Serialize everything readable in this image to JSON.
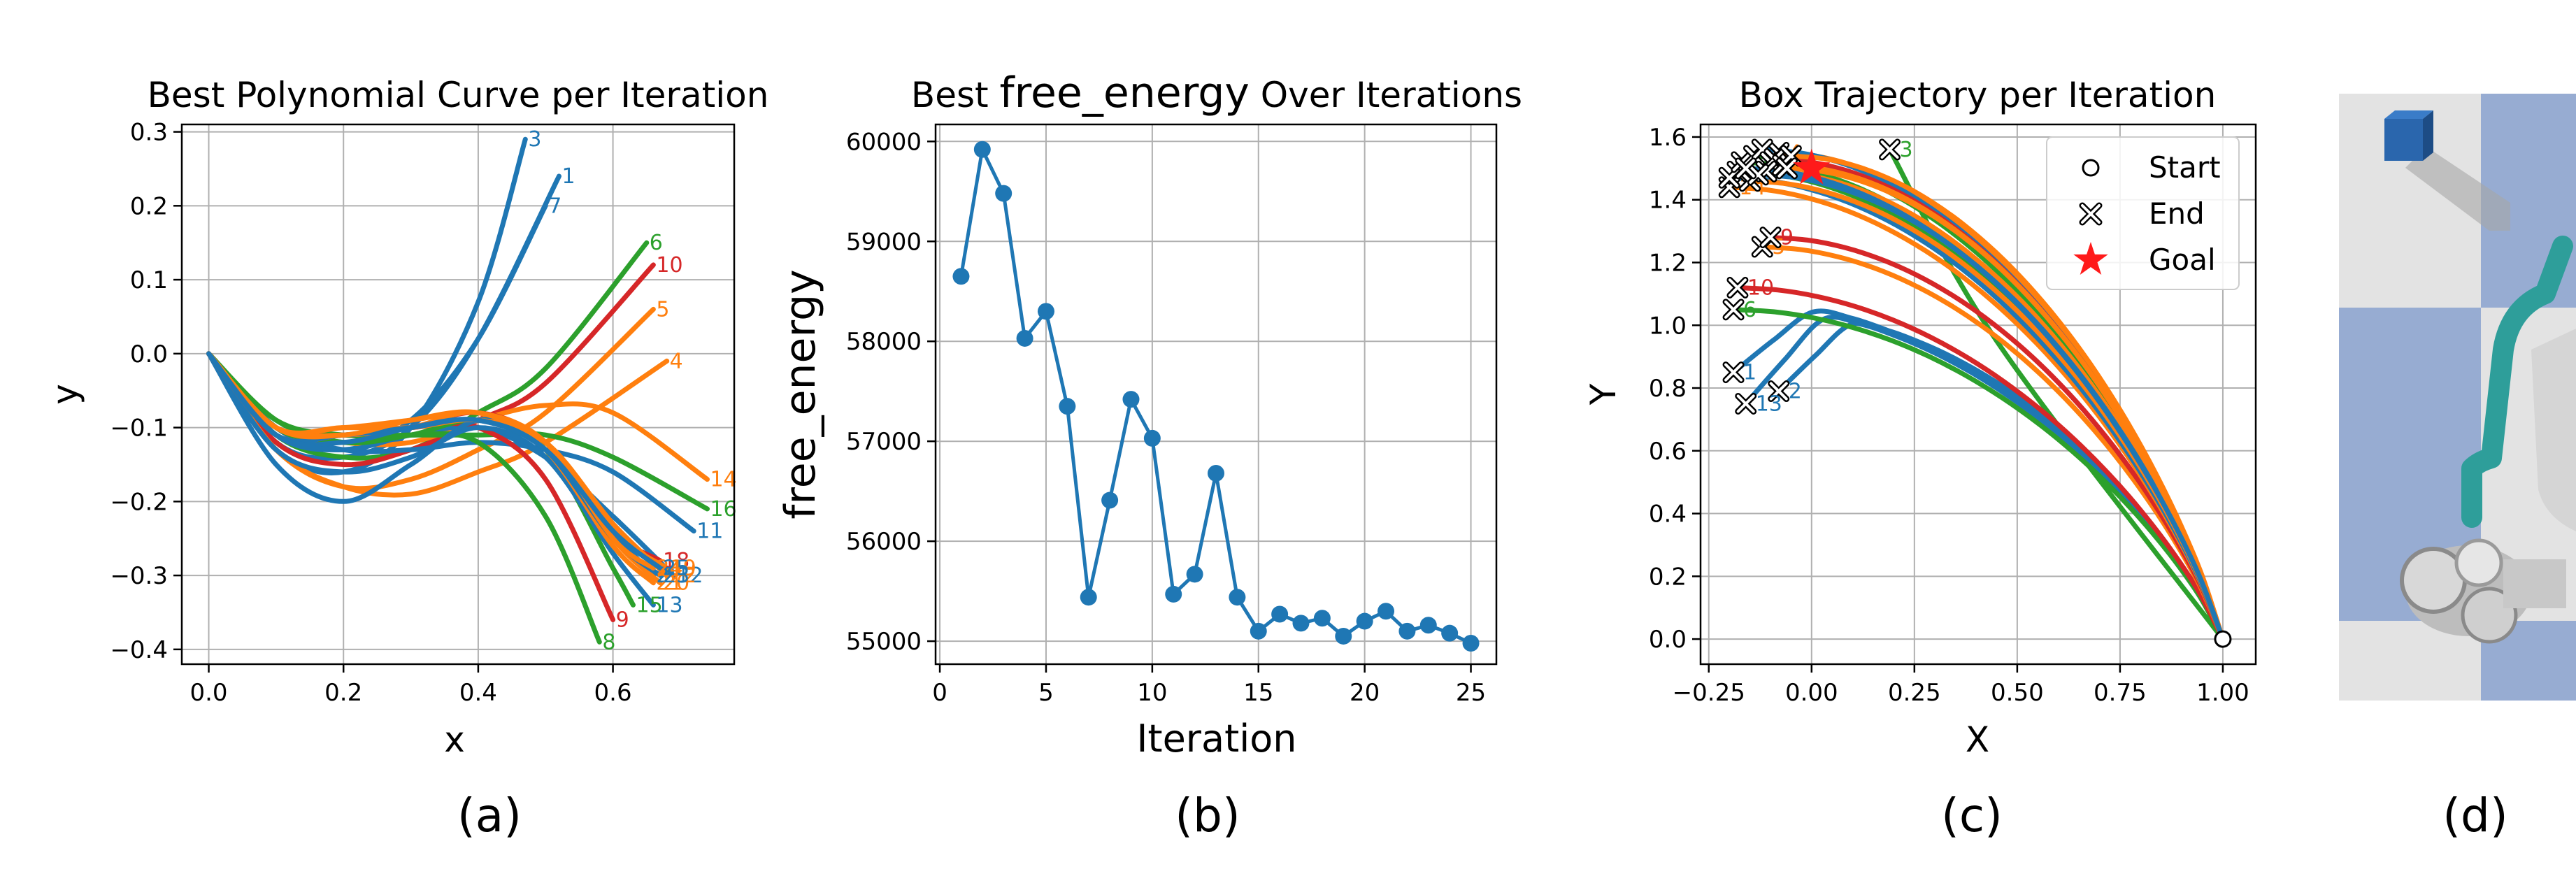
{
  "colors": {
    "blue": "#1f77b4",
    "orange": "#ff7f0e",
    "green": "#2ca02c",
    "red": "#d62728",
    "grid": "#b0b0b0"
  },
  "panels": [
    {
      "caption": "(a)"
    },
    {
      "caption": "(b)"
    },
    {
      "caption": "(c)"
    },
    {
      "caption": "(d)"
    }
  ],
  "chart_data": [
    {
      "type": "line",
      "title": "Best Polynomial Curve per Iteration",
      "xlabel": "x",
      "ylabel": "y",
      "xlim": [
        -0.04,
        0.78
      ],
      "ylim": [
        -0.42,
        0.31
      ],
      "xticks": [
        "0.0",
        "0.2",
        "0.4",
        "0.6"
      ],
      "xtick_values": [
        0,
        0.2,
        0.4,
        0.6
      ],
      "yticks": [
        "0.3",
        "0.2",
        "0.1",
        "0.0",
        "−0.1",
        "−0.2",
        "−0.3",
        "−0.4"
      ],
      "ytick_values": [
        0.3,
        0.2,
        0.1,
        0,
        -0.1,
        -0.2,
        -0.3,
        -0.4
      ],
      "grid": true,
      "series": [
        {
          "name": "3",
          "color": "#1f77b4",
          "x": [
            0,
            0.1,
            0.2,
            0.3,
            0.4,
            0.47
          ],
          "y": [
            0,
            -0.13,
            -0.16,
            -0.1,
            0.07,
            0.29
          ]
        },
        {
          "name": "1",
          "color": "#1f77b4",
          "x": [
            0,
            0.1,
            0.2,
            0.3,
            0.4,
            0.52
          ],
          "y": [
            0,
            -0.12,
            -0.14,
            -0.1,
            0.02,
            0.24
          ]
        },
        {
          "name": "7",
          "color": "#1f77b4",
          "x": [
            0,
            0.1,
            0.2,
            0.3,
            0.4,
            0.5
          ],
          "y": [
            0,
            -0.1,
            -0.13,
            -0.09,
            0.02,
            0.2
          ]
        },
        {
          "name": "6",
          "color": "#2ca02c",
          "x": [
            0,
            0.1,
            0.2,
            0.3,
            0.4,
            0.5,
            0.65
          ],
          "y": [
            0,
            -0.11,
            -0.14,
            -0.13,
            -0.08,
            -0.02,
            0.15
          ]
        },
        {
          "name": "10",
          "color": "#d62728",
          "x": [
            0,
            0.1,
            0.2,
            0.3,
            0.4,
            0.5,
            0.66
          ],
          "y": [
            0,
            -0.12,
            -0.15,
            -0.13,
            -0.09,
            -0.04,
            0.12
          ]
        },
        {
          "name": "5",
          "color": "#ff7f0e",
          "x": [
            0,
            0.1,
            0.2,
            0.3,
            0.4,
            0.5,
            0.66
          ],
          "y": [
            0,
            -0.13,
            -0.18,
            -0.17,
            -0.13,
            -0.08,
            0.06
          ]
        },
        {
          "name": "4",
          "color": "#ff7f0e",
          "x": [
            0,
            0.1,
            0.2,
            0.3,
            0.4,
            0.5,
            0.68
          ],
          "y": [
            0,
            -0.13,
            -0.18,
            -0.19,
            -0.16,
            -0.12,
            -0.01
          ]
        },
        {
          "name": "14",
          "color": "#ff7f0e",
          "x": [
            0,
            0.1,
            0.2,
            0.3,
            0.4,
            0.5,
            0.6,
            0.74
          ],
          "y": [
            0,
            -0.1,
            -0.12,
            -0.12,
            -0.09,
            -0.07,
            -0.08,
            -0.17
          ]
        },
        {
          "name": "16",
          "color": "#2ca02c",
          "x": [
            0,
            0.1,
            0.2,
            0.3,
            0.4,
            0.5,
            0.6,
            0.74
          ],
          "y": [
            0,
            -0.09,
            -0.11,
            -0.11,
            -0.11,
            -0.11,
            -0.14,
            -0.21
          ]
        },
        {
          "name": "11",
          "color": "#1f77b4",
          "x": [
            0,
            0.1,
            0.2,
            0.3,
            0.4,
            0.5,
            0.6,
            0.72
          ],
          "y": [
            0,
            -0.1,
            -0.13,
            -0.13,
            -0.12,
            -0.13,
            -0.16,
            -0.24
          ]
        },
        {
          "name": "12",
          "color": "#1f77b4",
          "x": [
            0,
            0.1,
            0.2,
            0.3,
            0.4,
            0.5,
            0.6,
            0.69
          ],
          "y": [
            0,
            -0.11,
            -0.13,
            -0.11,
            -0.1,
            -0.14,
            -0.22,
            -0.3
          ]
        },
        {
          "name": "9",
          "color": "#d62728",
          "x": [
            0,
            0.1,
            0.2,
            0.3,
            0.4,
            0.5,
            0.6
          ],
          "y": [
            0,
            -0.1,
            -0.11,
            -0.1,
            -0.1,
            -0.17,
            -0.36
          ]
        },
        {
          "name": "8",
          "color": "#2ca02c",
          "x": [
            0,
            0.1,
            0.2,
            0.3,
            0.4,
            0.5,
            0.58
          ],
          "y": [
            0,
            -0.1,
            -0.12,
            -0.11,
            -0.12,
            -0.22,
            -0.39
          ]
        },
        {
          "name": "15",
          "color": "#2ca02c",
          "x": [
            0,
            0.1,
            0.2,
            0.3,
            0.4,
            0.5,
            0.6,
            0.63
          ],
          "y": [
            0,
            -0.09,
            -0.12,
            -0.11,
            -0.09,
            -0.13,
            -0.29,
            -0.34
          ]
        },
        {
          "name": "13",
          "color": "#1f77b4",
          "x": [
            0,
            0.1,
            0.2,
            0.3,
            0.4,
            0.5,
            0.6,
            0.66
          ],
          "y": [
            0,
            -0.13,
            -0.16,
            -0.14,
            -0.1,
            -0.14,
            -0.27,
            -0.34
          ]
        },
        {
          "name": "2",
          "color": "#1f77b4",
          "x": [
            0,
            0.1,
            0.2,
            0.3,
            0.4,
            0.5,
            0.6,
            0.66
          ],
          "y": [
            0,
            -0.15,
            -0.2,
            -0.15,
            -0.09,
            -0.12,
            -0.24,
            -0.3
          ]
        },
        {
          "name": "18",
          "color": "#d62728",
          "x": [
            0,
            0.1,
            0.2,
            0.3,
            0.4,
            0.5,
            0.6,
            0.67
          ],
          "y": [
            0,
            -0.11,
            -0.11,
            -0.1,
            -0.08,
            -0.12,
            -0.24,
            -0.28
          ]
        },
        {
          "name": "19",
          "color": "#ff7f0e",
          "x": [
            0,
            0.1,
            0.2,
            0.3,
            0.4,
            0.5,
            0.6,
            0.68
          ],
          "y": [
            0,
            -0.1,
            -0.1,
            -0.09,
            -0.08,
            -0.12,
            -0.24,
            -0.29
          ]
        },
        {
          "name": "20",
          "color": "#ff7f0e",
          "x": [
            0,
            0.1,
            0.2,
            0.3,
            0.4,
            0.5,
            0.6,
            0.67
          ],
          "y": [
            0,
            -0.1,
            -0.11,
            -0.1,
            -0.09,
            -0.12,
            -0.25,
            -0.31
          ]
        },
        {
          "name": "21",
          "color": "#ff7f0e",
          "x": [
            0,
            0.1,
            0.2,
            0.3,
            0.4,
            0.5,
            0.6,
            0.66
          ],
          "y": [
            0,
            -0.11,
            -0.11,
            -0.1,
            -0.08,
            -0.13,
            -0.26,
            -0.31
          ]
        },
        {
          "name": "22",
          "color": "#ff7f0e",
          "x": [
            0,
            0.1,
            0.2,
            0.3,
            0.4,
            0.5,
            0.6,
            0.68
          ],
          "y": [
            0,
            -0.1,
            -0.1,
            -0.1,
            -0.09,
            -0.12,
            -0.23,
            -0.3
          ]
        },
        {
          "name": "23",
          "color": "#1f77b4",
          "x": [
            0,
            0.1,
            0.2,
            0.3,
            0.4,
            0.5,
            0.6,
            0.67
          ],
          "y": [
            0,
            -0.11,
            -0.11,
            -0.1,
            -0.09,
            -0.13,
            -0.25,
            -0.3
          ]
        },
        {
          "name": "24",
          "color": "#ff7f0e",
          "x": [
            0,
            0.1,
            0.2,
            0.3,
            0.4,
            0.5,
            0.6,
            0.66
          ],
          "y": [
            0,
            -0.1,
            -0.11,
            -0.09,
            -0.08,
            -0.12,
            -0.25,
            -0.29
          ]
        },
        {
          "name": "25",
          "color": "#1f77b4",
          "x": [
            0,
            0.1,
            0.2,
            0.3,
            0.4,
            0.5,
            0.6,
            0.67
          ],
          "y": [
            0,
            -0.11,
            -0.12,
            -0.1,
            -0.09,
            -0.13,
            -0.24,
            -0.29
          ]
        }
      ]
    },
    {
      "type": "line",
      "title_prefix": "Best ",
      "title_var": "free_energy",
      "title_suffix": " Over Iterations",
      "xlabel": "Iteration",
      "ylabel": "free_energy",
      "xlim": [
        -0.2,
        26.2
      ],
      "ylim": [
        54770,
        60170
      ],
      "xticks": [
        "0",
        "5",
        "10",
        "15",
        "20",
        "25"
      ],
      "xtick_values": [
        0,
        5,
        10,
        15,
        20,
        25
      ],
      "yticks": [
        "60000",
        "59000",
        "58000",
        "57000",
        "56000",
        "55000"
      ],
      "ytick_values": [
        60000,
        59000,
        58000,
        57000,
        56000,
        55000
      ],
      "grid": true,
      "series": [
        {
          "color": "#1f77b4",
          "x": [
            1,
            2,
            3,
            4,
            5,
            6,
            7,
            8,
            9,
            10,
            11,
            12,
            13,
            14,
            15,
            16,
            17,
            18,
            19,
            20,
            21,
            22,
            23,
            24,
            25
          ],
          "y": [
            58650,
            59920,
            59480,
            58030,
            58300,
            57350,
            55440,
            56410,
            57420,
            57030,
            55470,
            55670,
            56680,
            55440,
            55100,
            55270,
            55180,
            55230,
            55050,
            55200,
            55300,
            55100,
            55160,
            55080,
            54980
          ]
        }
      ]
    },
    {
      "type": "line",
      "title": "Box Trajectory per Iteration",
      "xlabel": "X",
      "ylabel": "Y",
      "xlim": [
        -0.27,
        1.08
      ],
      "ylim": [
        -0.08,
        1.64
      ],
      "xticks": [
        "−0.25",
        "0.00",
        "0.25",
        "0.50",
        "0.75",
        "1.00"
      ],
      "xtick_values": [
        -0.25,
        0,
        0.25,
        0.5,
        0.75,
        1
      ],
      "yticks": [
        "1.6",
        "1.4",
        "1.2",
        "1.0",
        "0.8",
        "0.6",
        "0.4",
        "0.2",
        "0.0"
      ],
      "ytick_values": [
        1.6,
        1.4,
        1.2,
        1,
        0.8,
        0.6,
        0.4,
        0.2,
        0
      ],
      "grid": true,
      "legend": {
        "placement": "upper-right",
        "items": [
          {
            "marker": "circle",
            "label": "Start"
          },
          {
            "marker": "x",
            "label": "End"
          },
          {
            "marker": "star",
            "label": "Goal"
          }
        ]
      },
      "start": [
        1.0,
        0.0
      ],
      "goal": [
        0.0,
        1.5
      ],
      "series": [
        {
          "name": "3",
          "color": "#2ca02c",
          "end": [
            0.19,
            1.56
          ]
        },
        {
          "name": "2",
          "color": "#1f77b4",
          "end": [
            -0.08,
            0.79
          ]
        },
        {
          "name": "13",
          "color": "#1f77b4",
          "end": [
            -0.16,
            0.75
          ]
        },
        {
          "name": "1",
          "color": "#1f77b4",
          "end": [
            -0.19,
            0.85
          ]
        },
        {
          "name": "6",
          "color": "#2ca02c",
          "end": [
            -0.19,
            1.05
          ]
        },
        {
          "name": "10",
          "color": "#d62728",
          "end": [
            -0.18,
            1.12
          ]
        },
        {
          "name": "5",
          "color": "#ff7f0e",
          "end": [
            -0.12,
            1.25
          ]
        },
        {
          "name": "9",
          "color": "#d62728",
          "end": [
            -0.1,
            1.28
          ]
        },
        {
          "name": "14",
          "color": "#ff7f0e",
          "end": [
            -0.2,
            1.44
          ]
        },
        {
          "name": "4",
          "color": "#ff7f0e",
          "end": [
            -0.08,
            1.55
          ]
        },
        {
          "name": "16",
          "color": "#2ca02c",
          "end": [
            -0.18,
            1.49
          ]
        },
        {
          "name": "11",
          "color": "#1f77b4",
          "end": [
            -0.2,
            1.47
          ]
        },
        {
          "name": "7",
          "color": "#2ca02c",
          "end": [
            -0.17,
            1.52
          ]
        },
        {
          "name": "8",
          "color": "#2ca02c",
          "end": [
            -0.14,
            1.54
          ]
        },
        {
          "name": "12",
          "color": "#1f77b4",
          "end": [
            -0.12,
            1.56
          ]
        },
        {
          "name": "15",
          "color": "#2ca02c",
          "end": [
            -0.1,
            1.52
          ]
        },
        {
          "name": "18",
          "color": "#d62728",
          "end": [
            -0.09,
            1.53
          ]
        },
        {
          "name": "19",
          "color": "#ff7f0e",
          "end": [
            -0.07,
            1.51
          ]
        },
        {
          "name": "20",
          "color": "#ff7f0e",
          "end": [
            -0.15,
            1.46
          ]
        },
        {
          "name": "21",
          "color": "#ff7f0e",
          "end": [
            -0.11,
            1.49
          ]
        },
        {
          "name": "22",
          "color": "#ff7f0e",
          "end": [
            -0.05,
            1.54
          ]
        },
        {
          "name": "23",
          "color": "#1f77b4",
          "end": [
            -0.13,
            1.48
          ]
        },
        {
          "name": "24",
          "color": "#ff7f0e",
          "end": [
            -0.06,
            1.5
          ]
        },
        {
          "name": "25",
          "color": "#1f77b4",
          "end": [
            -0.16,
            1.5
          ]
        }
      ],
      "end_label_names": [
        "3",
        "2",
        "13",
        "1",
        "6",
        "10",
        "5",
        "9",
        "14",
        "4"
      ]
    }
  ]
}
